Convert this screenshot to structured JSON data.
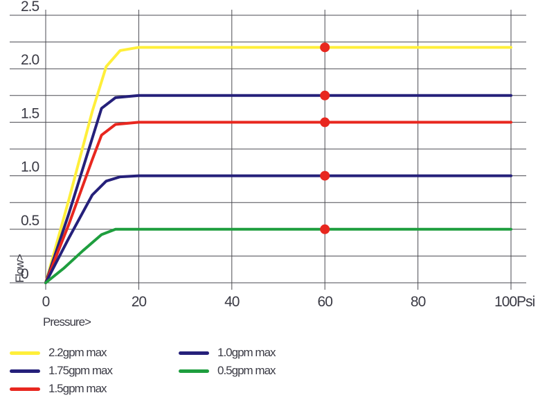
{
  "chart_data": {
    "type": "line",
    "ylim": [
      0,
      2.5
    ],
    "xlim": [
      0,
      100
    ],
    "x_ticks": [
      "0",
      "20",
      "40",
      "60",
      "80",
      "100Psi"
    ],
    "x_tick_values": [
      0,
      20,
      40,
      60,
      80,
      100
    ],
    "y_ticks": [
      "0",
      "0.5",
      "1.0",
      "1.5",
      "2.0",
      "2.5"
    ],
    "y_tick_values": [
      0,
      0.5,
      1.0,
      1.5,
      2.0,
      2.5
    ],
    "xlabel": "Pressure>",
    "ylabel": "Flow>",
    "grid": true,
    "marker_x": 60,
    "series": [
      {
        "name": "2.2gpm max",
        "color": "#ffef3a",
        "x": [
          0,
          5,
          10,
          13,
          16,
          20,
          60,
          100
        ],
        "y": [
          0,
          0.78,
          1.6,
          2.02,
          2.17,
          2.2,
          2.2,
          2.2
        ]
      },
      {
        "name": "1.75gpm max",
        "color": "#25207a",
        "x": [
          0,
          5,
          10,
          12,
          15,
          20,
          60,
          100
        ],
        "y": [
          0,
          0.65,
          1.35,
          1.63,
          1.73,
          1.75,
          1.75,
          1.75
        ]
      },
      {
        "name": "1.5gpm max",
        "color": "#e8271f",
        "x": [
          0,
          5,
          10,
          12,
          15,
          20,
          60,
          100
        ],
        "y": [
          0,
          0.55,
          1.15,
          1.38,
          1.48,
          1.5,
          1.5,
          1.5
        ]
      },
      {
        "name": "1.0gpm max",
        "color": "#25207a",
        "x": [
          0,
          5,
          10,
          13,
          16,
          20,
          60,
          100
        ],
        "y": [
          0,
          0.42,
          0.82,
          0.95,
          0.99,
          1.0,
          1.0,
          1.0
        ]
      },
      {
        "name": "0.5gpm max",
        "color": "#1e9e3e",
        "x": [
          0,
          4,
          8,
          12,
          15,
          20,
          60,
          100
        ],
        "y": [
          0,
          0.14,
          0.3,
          0.45,
          0.5,
          0.5,
          0.5,
          0.5
        ]
      }
    ]
  },
  "marker_color": "#e8271f",
  "legend": [
    {
      "label": "2.2gpm max",
      "color": "#ffef3a"
    },
    {
      "label": "1.75gpm max",
      "color": "#25207a"
    },
    {
      "label": "1.5gpm max",
      "color": "#e8271f"
    },
    {
      "label": "1.0gpm max",
      "color": "#25207a"
    },
    {
      "label": "0.5gpm max",
      "color": "#1e9e3e"
    }
  ]
}
